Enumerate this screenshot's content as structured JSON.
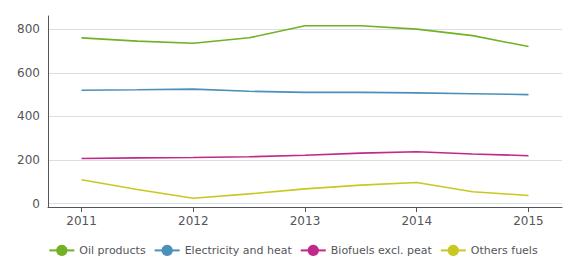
{
  "chart_data": {
    "type": "line",
    "x": [
      2011,
      2011.5,
      2012,
      2012.5,
      2013,
      2013.5,
      2014,
      2014.5,
      2015
    ],
    "series": [
      {
        "name": "Oil products",
        "color": "#72b026",
        "values": [
          760,
          745,
          735,
          760,
          815,
          815,
          800,
          770,
          720
        ]
      },
      {
        "name": "Electricity and heat",
        "color": "#4a90b8",
        "values": [
          520,
          522,
          525,
          515,
          510,
          510,
          508,
          504,
          500
        ]
      },
      {
        "name": "Biofuels excl. peat",
        "color": "#c0288a",
        "values": [
          207,
          210,
          212,
          215,
          222,
          232,
          238,
          228,
          220
        ]
      },
      {
        "name": "Others fuels",
        "color": "#c8c820",
        "values": [
          110,
          65,
          25,
          45,
          68,
          85,
          97,
          55,
          38
        ]
      }
    ],
    "xlim": [
      2010.7,
      2015.3
    ],
    "xticks": [
      2011,
      2012,
      2013,
      2014,
      2015
    ],
    "ylim": [
      -15,
      860
    ],
    "yticks": [
      0,
      200,
      400,
      600,
      800
    ],
    "grid": true,
    "legend": "bottom"
  }
}
